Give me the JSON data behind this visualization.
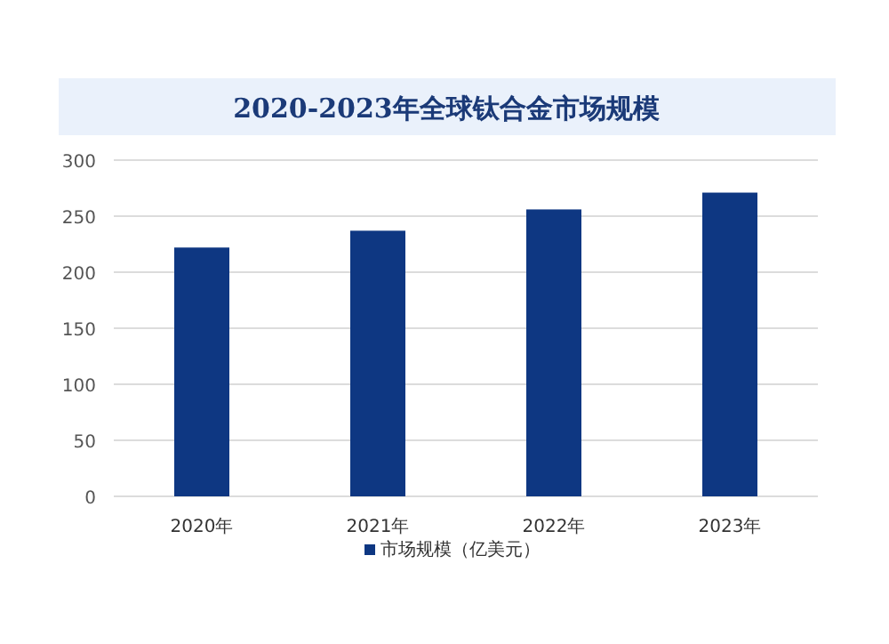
{
  "chart_data": {
    "type": "bar",
    "title": "2020-2023年全球钛合金市场规模",
    "categories": [
      "2020年",
      "2021年",
      "2022年",
      "2023年"
    ],
    "series": [
      {
        "name": "市场规模（亿美元）",
        "color": "#0e3782",
        "values": [
          222,
          237,
          256,
          271
        ]
      }
    ],
    "ylim": [
      0,
      300
    ],
    "yticks": [
      0,
      50,
      100,
      150,
      200,
      250,
      300
    ],
    "grid": "y",
    "legend": "bottom"
  }
}
